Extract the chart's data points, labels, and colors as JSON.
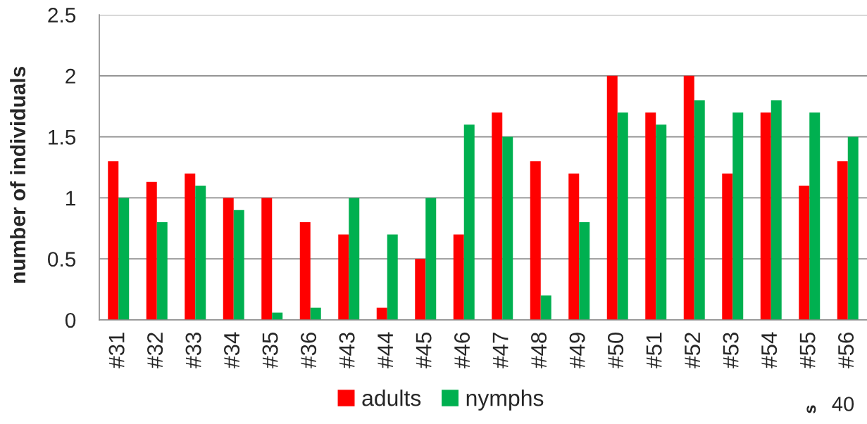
{
  "chart_data": {
    "type": "bar",
    "ylabel": "number of individuals",
    "categories": [
      "#31",
      "#32",
      "#33",
      "#34",
      "#35",
      "#36",
      "#43",
      "#44",
      "#45",
      "#46",
      "#47",
      "#48",
      "#49",
      "#50",
      "#51",
      "#52",
      "#53",
      "#54",
      "#55",
      "#56"
    ],
    "series": [
      {
        "name": "adults",
        "color": "#ff0000",
        "values": [
          1.3,
          1.13,
          1.2,
          1.0,
          1.0,
          0.8,
          0.7,
          0.1,
          0.5,
          0.7,
          1.7,
          1.3,
          1.2,
          2.0,
          1.7,
          2.0,
          1.2,
          1.7,
          1.1,
          1.3
        ]
      },
      {
        "name": "nymphs",
        "color": "#00b050",
        "values": [
          1.0,
          0.8,
          1.1,
          0.9,
          0.06,
          0.1,
          1.0,
          0.7,
          1.0,
          1.6,
          1.5,
          0.2,
          0.8,
          1.7,
          1.6,
          1.8,
          1.7,
          1.8,
          1.7,
          1.5
        ]
      }
    ],
    "ylim": [
      0,
      2.5
    ],
    "yticks": [
      0,
      0.5,
      1,
      1.5,
      2,
      2.5
    ],
    "grid": "y",
    "legend": "bottom",
    "annotations": [
      "s",
      "40"
    ]
  }
}
